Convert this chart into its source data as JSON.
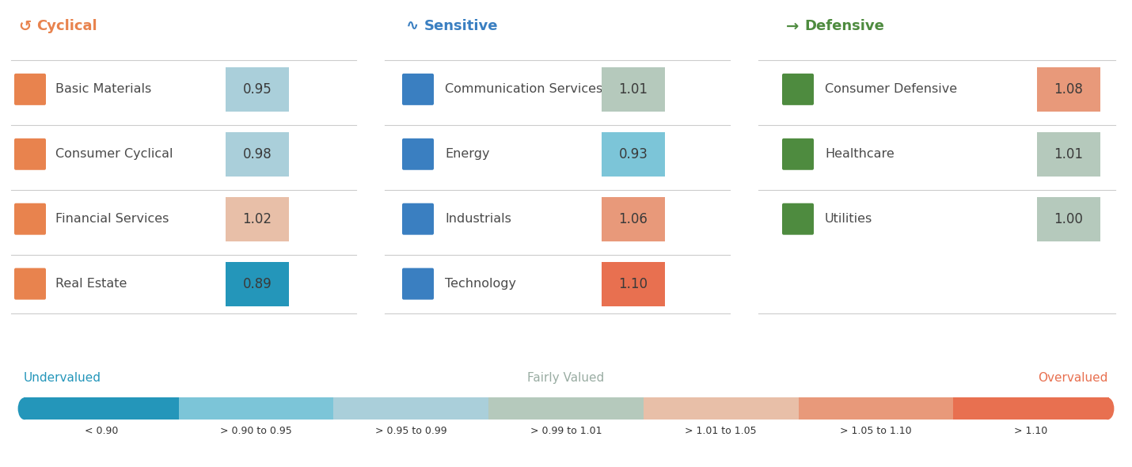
{
  "background_color": "#f5f5f0",
  "categories": {
    "Cyclical": {
      "color": "#E8834E",
      "sectors": [
        {
          "name": "Basic Materials",
          "value": 0.95
        },
        {
          "name": "Consumer Cyclical",
          "value": 0.98
        },
        {
          "name": "Financial Services",
          "value": 1.02
        },
        {
          "name": "Real Estate",
          "value": 0.89
        }
      ]
    },
    "Sensitive": {
      "color": "#3A7FC1",
      "sectors": [
        {
          "name": "Communication Services",
          "value": 1.01
        },
        {
          "name": "Energy",
          "value": 0.93
        },
        {
          "name": "Industrials",
          "value": 1.06
        },
        {
          "name": "Technology",
          "value": 1.1
        }
      ]
    },
    "Defensive": {
      "color": "#4E8B3F",
      "sectors": [
        {
          "name": "Consumer Defensive",
          "value": 1.08
        },
        {
          "name": "Healthcare",
          "value": 1.01
        },
        {
          "name": "Utilities",
          "value": 1.0
        }
      ]
    }
  },
  "value_color_map": [
    {
      "range": [
        0,
        0.9
      ],
      "color": "#2496BA"
    },
    {
      "range": [
        0.9,
        0.95
      ],
      "color": "#7CC5D8"
    },
    {
      "range": [
        0.95,
        0.99
      ],
      "color": "#AACFDA"
    },
    {
      "range": [
        0.99,
        1.015
      ],
      "color": "#B5C9BC"
    },
    {
      "range": [
        1.015,
        1.05
      ],
      "color": "#E8BFA8"
    },
    {
      "range": [
        1.05,
        1.1
      ],
      "color": "#E8997A"
    },
    {
      "range": [
        1.1,
        99
      ],
      "color": "#E87050"
    }
  ],
  "legend_bar": {
    "segments": [
      {
        "label": "< 0.90",
        "color": "#2496BA"
      },
      {
        "label": "> 0.90 to 0.95",
        "color": "#7CC5D8"
      },
      {
        "label": "> 0.95 to 0.99",
        "color": "#AACFDA"
      },
      {
        "label": "> 0.99 to 1.01",
        "color": "#B5C9BC"
      },
      {
        "label": "> 1.01 to 1.05",
        "color": "#E8BFA8"
      },
      {
        "label": "> 1.05 to 1.10",
        "color": "#E8997A"
      },
      {
        "label": "> 1.10",
        "color": "#E87050"
      }
    ],
    "undervalued_label": "Undervalued",
    "undervalued_color": "#2496BA",
    "fairly_valued_label": "Fairly Valued",
    "fairly_valued_color": "#9AADA3",
    "overvalued_label": "Overvalued",
    "overvalued_color": "#E87050"
  },
  "text_color": "#4a4a4a",
  "separator_color": "#cccccc"
}
